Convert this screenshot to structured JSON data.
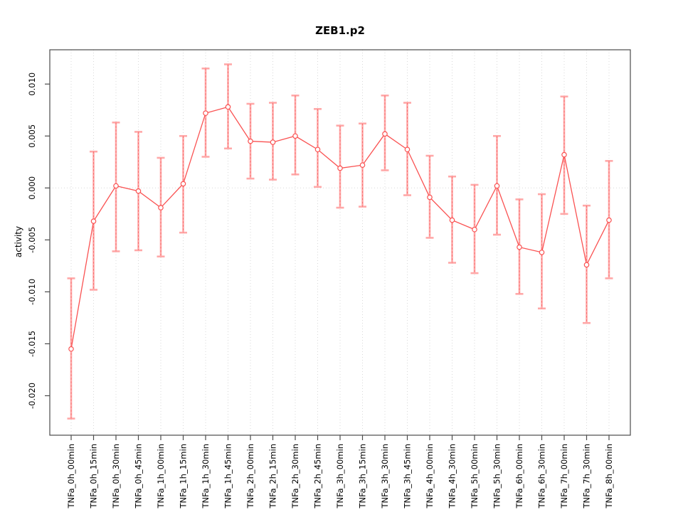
{
  "chart_data": {
    "type": "line",
    "title": "ZEB1.p2",
    "xlabel": "",
    "ylabel": "activity",
    "legend_position": "none",
    "grid": "vertical dotted line at every category; horizontal dotted line at y=0 only",
    "categories": [
      "TNFa_0h_00min",
      "TNFa_0h_15min",
      "TNFa_0h_30min",
      "TNFa_0h_45min",
      "TNFa_1h_00min",
      "TNFa_1h_15min",
      "TNFa_1h_30min",
      "TNFa_1h_45min",
      "TNFa_2h_00min",
      "TNFa_2h_15min",
      "TNFa_2h_30min",
      "TNFa_2h_45min",
      "TNFa_3h_00min",
      "TNFa_3h_15min",
      "TNFa_3h_30min",
      "TNFa_3h_45min",
      "TNFa_4h_00min",
      "TNFa_4h_30min",
      "TNFa_5h_00min",
      "TNFa_5h_30min",
      "TNFa_6h_00min",
      "TNFa_6h_30min",
      "TNFa_7h_00min",
      "TNFa_7h_30min",
      "TNFa_8h_00min"
    ],
    "series": [
      {
        "name": "activity",
        "marker": "open-circle",
        "values": [
          -0.0155,
          -0.0032,
          0.0002,
          -0.0003,
          -0.0019,
          0.0004,
          0.0072,
          0.0078,
          0.0045,
          0.0044,
          0.005,
          0.0037,
          0.0019,
          0.0022,
          0.0052,
          0.0037,
          -0.0009,
          -0.0031,
          -0.004,
          0.0002,
          -0.0057,
          -0.0062,
          0.0032,
          -0.0074,
          -0.0031
        ],
        "error_upper": [
          -0.0087,
          0.0035,
          0.0063,
          0.0054,
          0.0029,
          0.005,
          0.0115,
          0.0119,
          0.0081,
          0.0082,
          0.0089,
          0.0076,
          0.006,
          0.0062,
          0.0089,
          0.0082,
          0.0031,
          0.0011,
          0.0003,
          0.005,
          -0.0011,
          -0.0006,
          0.0088,
          -0.0017,
          0.0026
        ],
        "error_lower": [
          -0.0222,
          -0.0098,
          -0.0061,
          -0.006,
          -0.0066,
          -0.0043,
          0.003,
          0.0038,
          0.0009,
          0.0008,
          0.0013,
          0.0001,
          -0.0019,
          -0.0018,
          0.0017,
          -0.0007,
          -0.0048,
          -0.0072,
          -0.0082,
          -0.0045,
          -0.0102,
          -0.0116,
          -0.0025,
          -0.013,
          -0.0087
        ]
      }
    ],
    "yticks": [
      0.01,
      0.005,
      0.0,
      -0.005,
      -0.01,
      -0.015,
      -0.02
    ],
    "ytick_labels": [
      "0.010",
      "0.005",
      "0.000",
      "-0.005",
      "-0.010",
      "-0.015",
      "-0.020"
    ],
    "ylim": [
      -0.0238,
      0.0133
    ],
    "colors": {
      "line": "#fa5252",
      "marker_fill": "#ffffff",
      "error_bar": "#ffa8a8",
      "error_dash": "#f87272",
      "grid": "#d8d8d8",
      "axis_box": "#4b4b4b",
      "text": "#000000",
      "background": "#ffffff"
    }
  }
}
